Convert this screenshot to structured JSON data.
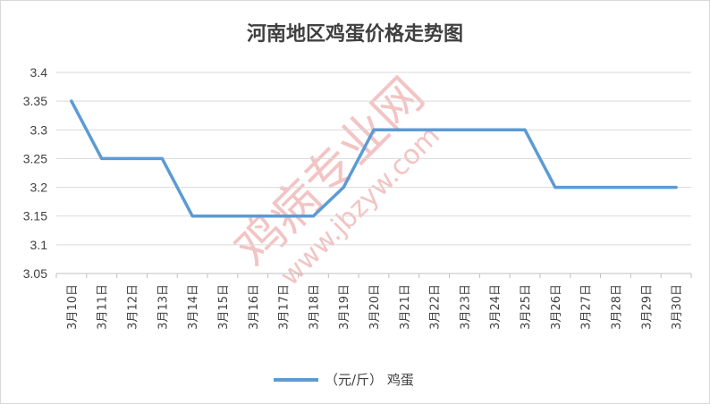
{
  "chart_data": {
    "type": "line",
    "title": "河南地区鸡蛋价格走势图",
    "categories": [
      "3月10日",
      "3月11日",
      "3月12日",
      "3月13日",
      "3月14日",
      "3月15日",
      "3月16日",
      "3月17日",
      "3月18日",
      "3月19日",
      "3月20日",
      "3月21日",
      "3月22日",
      "3月23日",
      "3月24日",
      "3月25日",
      "3月26日",
      "3月27日",
      "3月28日",
      "3月29日",
      "3月30日"
    ],
    "series": [
      {
        "name": "（元/斤） 鸡蛋",
        "values": [
          3.35,
          3.25,
          3.25,
          3.25,
          3.15,
          3.15,
          3.15,
          3.15,
          3.15,
          3.2,
          3.3,
          3.3,
          3.3,
          3.3,
          3.3,
          3.3,
          3.2,
          3.2,
          3.2,
          3.2,
          3.2
        ]
      }
    ],
    "ylim": [
      3.05,
      3.4
    ],
    "yticks": [
      "3.05",
      "3.1",
      "3.15",
      "3.2",
      "3.25",
      "3.3",
      "3.35",
      "3.4"
    ],
    "grid": true,
    "legend_position": "bottom",
    "line_color": "#5b9bd5",
    "grid_color": "#d9d9d9"
  },
  "watermark": {
    "main": "鸡病专业网",
    "url": "www.jbzyw.com"
  }
}
